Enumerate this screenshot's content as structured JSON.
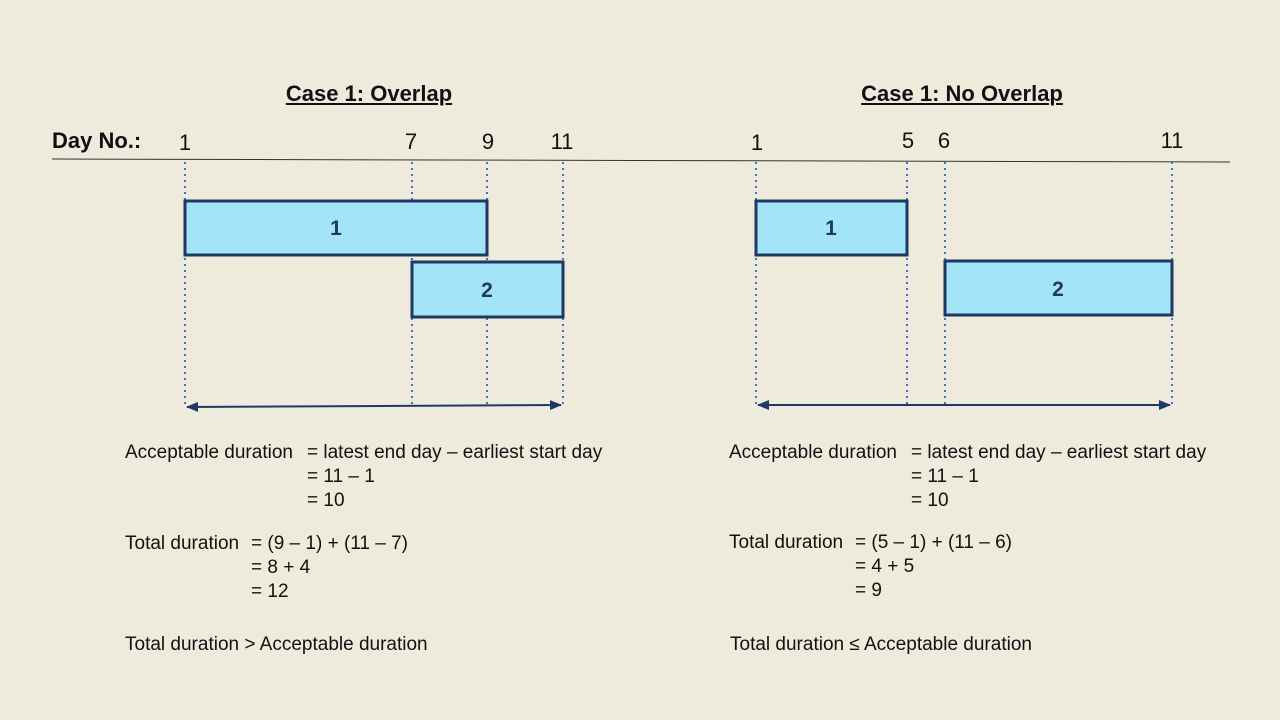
{
  "colors": {
    "background": "#eeeadc",
    "task_fill": "#a3e4f7",
    "task_stroke": "#1f3864",
    "dotted_line": "#4472c4",
    "arrow": "#1f3864"
  },
  "axis_label": "Day No.:",
  "cases": [
    {
      "title": "Case 1: Overlap",
      "day_ticks": [
        "1",
        "7",
        "9",
        "11"
      ],
      "tasks": [
        {
          "label": "1",
          "start_day": 1,
          "end_day": 9
        },
        {
          "label": "2",
          "start_day": 7,
          "end_day": 11
        }
      ],
      "acceptable": {
        "label": "Acceptable duration",
        "lines": [
          "= latest end day – earliest start day",
          "= 11 – 1",
          "= 10"
        ]
      },
      "total": {
        "label": "Total duration",
        "lines": [
          "= (9 – 1) + (11 – 7)",
          "= 8 + 4",
          "= 12"
        ]
      },
      "comparison": "Total duration > Acceptable duration"
    },
    {
      "title": "Case 1: No Overlap",
      "day_ticks": [
        "1",
        "5",
        "6",
        "11"
      ],
      "tasks": [
        {
          "label": "1",
          "start_day": 1,
          "end_day": 5
        },
        {
          "label": "2",
          "start_day": 6,
          "end_day": 11
        }
      ],
      "acceptable": {
        "label": "Acceptable duration",
        "lines": [
          "= latest end day – earliest start day",
          "= 11 – 1",
          "= 10"
        ]
      },
      "total": {
        "label": "Total duration",
        "lines": [
          "= (5 – 1) + (11 – 6)",
          "= 4 + 5",
          "= 9"
        ]
      },
      "comparison": "Total duration ≤ Acceptable duration"
    }
  ]
}
